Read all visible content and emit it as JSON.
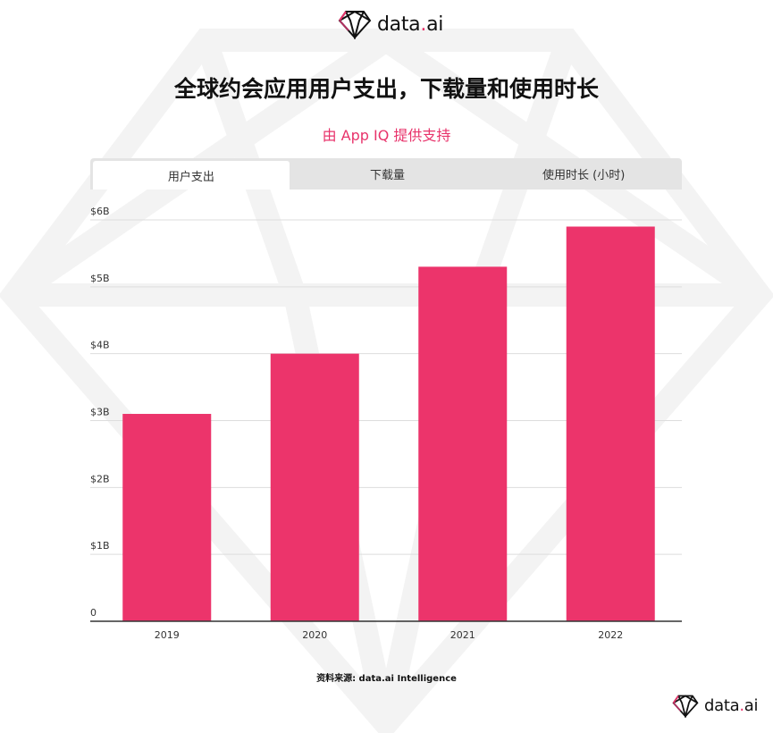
{
  "brand": {
    "name_main": "data",
    "name_dot": ".",
    "name_suffix": "ai",
    "accent_color": "#e8336b"
  },
  "header": {
    "title": "全球约会应用用户支出，下载量和使用时长",
    "subtitle": "由 App IQ 提供支持"
  },
  "tabs": [
    {
      "label": "用户支出",
      "active": true
    },
    {
      "label": "下载量",
      "active": false
    },
    {
      "label": "使用时长 (小时)",
      "active": false
    }
  ],
  "chart_data": {
    "type": "bar",
    "categories": [
      "2019",
      "2020",
      "2021",
      "2022"
    ],
    "values": [
      3.1,
      4.0,
      5.3,
      5.9
    ],
    "unit": "B USD",
    "ylim": [
      0,
      6
    ],
    "yticks": [
      0,
      1,
      2,
      3,
      4,
      5,
      6
    ],
    "ytick_labels": [
      "0",
      "$1B",
      "$2B",
      "$3B",
      "$4B",
      "$5B",
      "$6B"
    ],
    "bar_color": "#ec346b",
    "grid": true,
    "title": "",
    "xlabel": "",
    "ylabel": ""
  },
  "footer": {
    "source": "资料来源: data.ai Intelligence"
  }
}
